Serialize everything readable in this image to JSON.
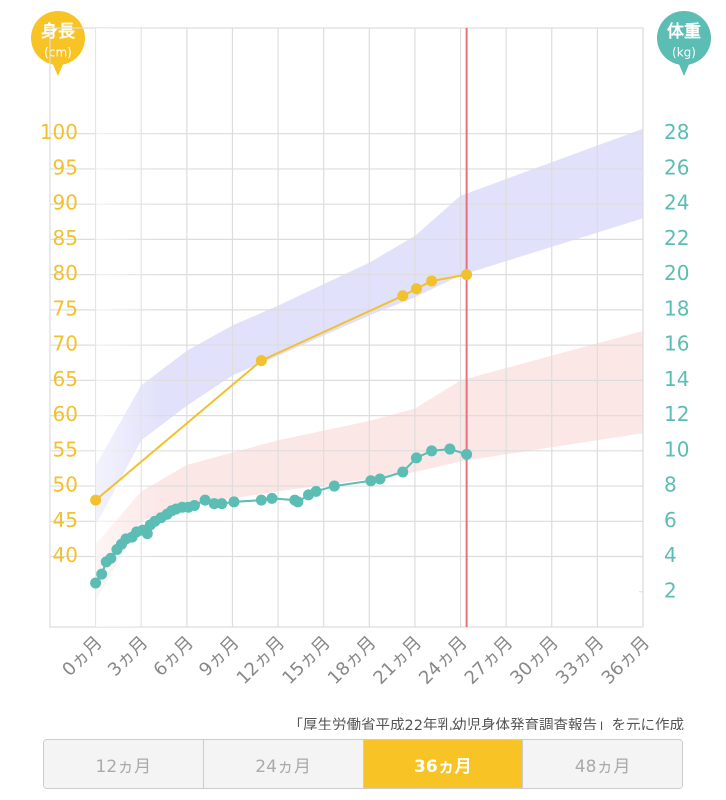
{
  "chart_data": {
    "type": "line",
    "left_axis_title": "身長",
    "left_axis_unit": "(cm)",
    "right_axis_title": "体重",
    "right_axis_unit": "(kg)",
    "xlim": [
      -3,
      36
    ],
    "xticks": [
      {
        "value": 0,
        "label": "0ヵ月"
      },
      {
        "value": 3,
        "label": "3ヵ月"
      },
      {
        "value": 6,
        "label": "6ヵ月"
      },
      {
        "value": 9,
        "label": "9ヵ月"
      },
      {
        "value": 12,
        "label": "12ヵ月"
      },
      {
        "value": 15,
        "label": "15ヵ月"
      },
      {
        "value": 18,
        "label": "18ヵ月"
      },
      {
        "value": 21,
        "label": "21ヵ月"
      },
      {
        "value": 24,
        "label": "24ヵ月"
      },
      {
        "value": 27,
        "label": "27ヵ月"
      },
      {
        "value": 30,
        "label": "30ヵ月"
      },
      {
        "value": 33,
        "label": "33ヵ月"
      },
      {
        "value": 36,
        "label": "36ヵ月"
      }
    ],
    "ylim": [
      30,
      115
    ],
    "yticks": [
      40,
      45,
      50,
      55,
      60,
      65,
      70,
      75,
      80,
      85,
      90,
      95,
      100
    ],
    "y2lim": [
      0,
      34
    ],
    "y2ticks": [
      2,
      4,
      6,
      8,
      10,
      12,
      14,
      16,
      18,
      20,
      22,
      24,
      26,
      28
    ],
    "grid": true,
    "left_color": "#f2c12e",
    "right_color": "#5bbdb3",
    "marker_x": 24.4,
    "marker_color": "#ec6f78",
    "bands": [
      {
        "axis": "y",
        "color": "#c9c8f7",
        "x": [
          0,
          3,
          6,
          9,
          12,
          18,
          21,
          24,
          36
        ],
        "upper": [
          52.9,
          64.3,
          69.2,
          72.8,
          75.6,
          81.7,
          85.5,
          91.2,
          100.7
        ],
        "lower": [
          44.4,
          56.5,
          61.4,
          65.7,
          68.5,
          74.2,
          76.8,
          79.9,
          88
        ]
      },
      {
        "axis": "y2",
        "color": "#f9d3d3",
        "x": [
          0,
          3,
          6,
          12,
          18,
          21,
          24,
          36
        ],
        "upper": [
          4.7,
          7.7,
          9.2,
          10.6,
          11.7,
          12.4,
          14.0,
          16.8
        ],
        "lower": [
          1.5,
          6.0,
          6.9,
          7.7,
          8.4,
          8.8,
          9.4,
          11.0
        ]
      }
    ],
    "series": [
      {
        "axis": "y",
        "color": "#f2c12e",
        "x": [
          0,
          10.9,
          20.2,
          21.1,
          22.1,
          24.4
        ],
        "values": [
          48,
          67.8,
          77.0,
          78.0,
          79.1,
          80.0
        ]
      },
      {
        "axis": "y2",
        "color": "#5bbdb3",
        "x": [
          0,
          0.4,
          0.7,
          1.0,
          1.4,
          1.7,
          2.0,
          2.4,
          2.7,
          3.1,
          3.4,
          3.6,
          3.9,
          4.3,
          4.7,
          5.0,
          5.3,
          5.7,
          6.1,
          6.5,
          7.2,
          7.8,
          8.3,
          9.1,
          10.9,
          11.6,
          13.1,
          13.3,
          14.0,
          14.5,
          15.7,
          18.1,
          18.7,
          20.2,
          21.1,
          22.1,
          23.3,
          24.4
        ],
        "values": [
          2.5,
          3.0,
          3.7,
          3.9,
          4.4,
          4.7,
          5.0,
          5.1,
          5.4,
          5.5,
          5.3,
          5.8,
          6.0,
          6.2,
          6.4,
          6.6,
          6.7,
          6.8,
          6.8,
          6.9,
          7.2,
          7.0,
          7.0,
          7.1,
          7.2,
          7.3,
          7.2,
          7.1,
          7.5,
          7.7,
          8.0,
          8.3,
          8.4,
          8.8,
          9.6,
          10.0,
          10.1,
          9.8
        ]
      }
    ]
  },
  "footer_note": "「厚生労働省平成22年乳幼児身体発育調査報告」を元に作成",
  "tabs": [
    "12ヵ月",
    "24ヵ月",
    "36ヵ月",
    "48ヵ月"
  ],
  "selected_tab": 2
}
